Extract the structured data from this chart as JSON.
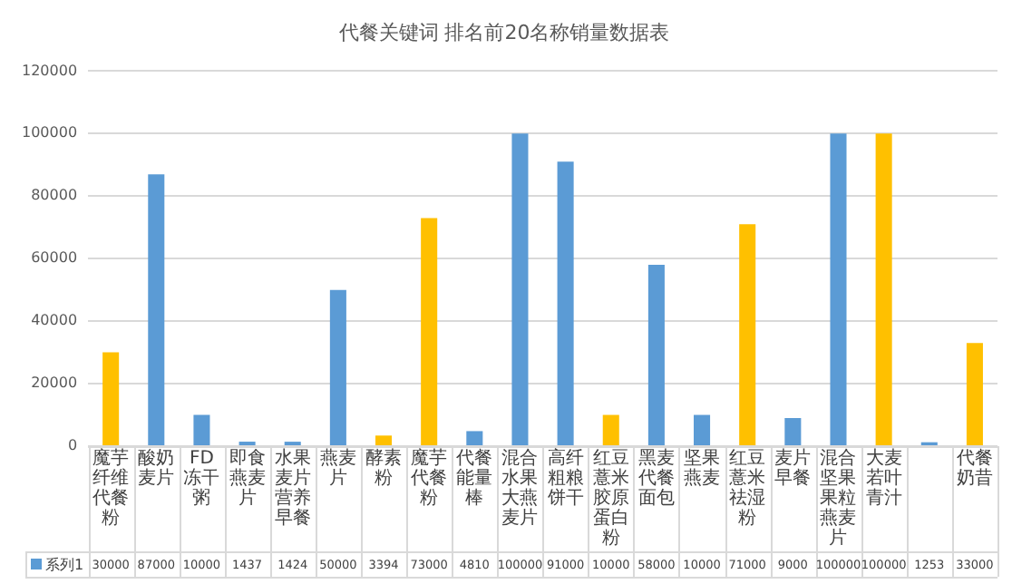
{
  "chart_data": {
    "type": "bar",
    "title": "代餐关键词 排名前20名称销量数据表",
    "categories": [
      "魔芋纤维代餐粉",
      "酸奶麦片",
      "FD冻干粥",
      "即食燕麦片",
      "水果麦片营养早餐",
      "燕麦片",
      "酵素粉",
      "魔芋代餐粉",
      "代餐能量棒",
      "混合水果大燕麦片",
      "高纤粗粮饼干",
      "红豆薏米胶原蛋白粉",
      "黑麦代餐面包",
      "坚果燕麦",
      "红豆薏米祛湿粉",
      "麦片早餐",
      "混合坚果果粒燕麦片",
      "大麦若叶青汁",
      null,
      "代餐奶昔"
    ],
    "series": [
      {
        "name": "系列1",
        "color": "#5b9bd5",
        "colors": [
          "#ffc000",
          "#5b9bd5",
          "#5b9bd5",
          "#5b9bd5",
          "#5b9bd5",
          "#5b9bd5",
          "#ffc000",
          "#ffc000",
          "#5b9bd5",
          "#5b9bd5",
          "#5b9bd5",
          "#ffc000",
          "#5b9bd5",
          "#5b9bd5",
          "#ffc000",
          "#5b9bd5",
          "#5b9bd5",
          "#ffc000",
          "#5b9bd5",
          "#ffc000"
        ],
        "values": [
          30000,
          87000,
          10000,
          1437,
          1424,
          50000,
          3394,
          73000,
          4810,
          100000,
          91000,
          10000,
          58000,
          10000,
          71000,
          9000,
          100000,
          100000,
          1253,
          33000
        ]
      }
    ],
    "ylim": [
      0,
      120000
    ],
    "yticks": [
      0,
      20000,
      40000,
      60000,
      80000,
      100000,
      120000
    ],
    "grid": "y",
    "legend": "bottom",
    "data_labels": true
  }
}
